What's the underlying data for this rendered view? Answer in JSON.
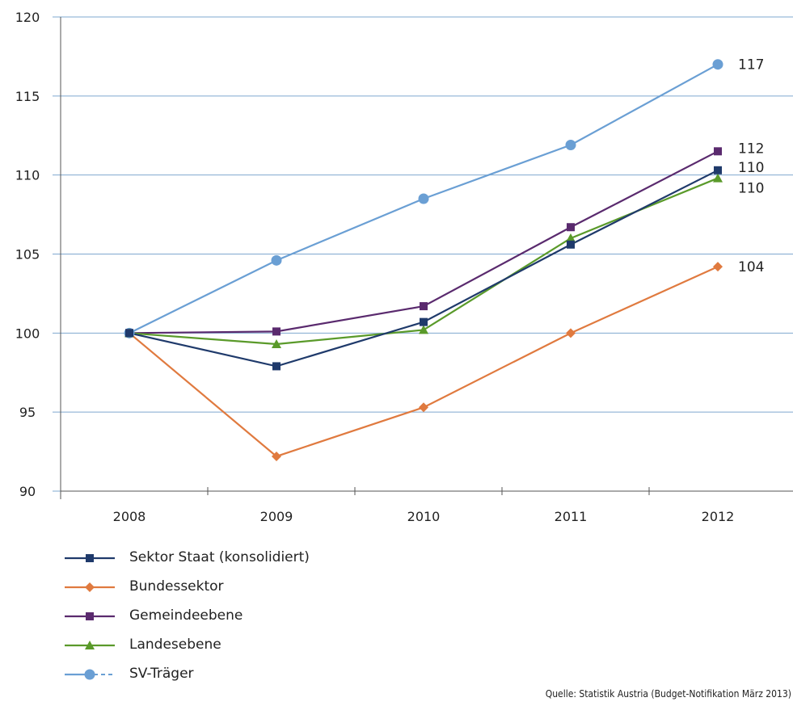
{
  "chart_data": {
    "type": "line",
    "categories": [
      "2008",
      "2009",
      "2010",
      "2011",
      "2012"
    ],
    "ylim": [
      90,
      120
    ],
    "yticks": [
      90,
      95,
      100,
      105,
      110,
      115,
      120
    ],
    "grid": true,
    "legend_position": "bottom-left",
    "series": [
      {
        "name": "Sektor Staat (konsolidiert)",
        "color": "#1f3a6b",
        "marker": "square",
        "values": [
          100,
          97.9,
          100.7,
          105.6,
          110.3
        ],
        "end_label": "110"
      },
      {
        "name": "Bundessektor",
        "color": "#e07a3f",
        "marker": "diamond",
        "values": [
          100,
          92.2,
          95.3,
          100,
          104.2
        ],
        "end_label": "104"
      },
      {
        "name": "Gemeindeebene",
        "color": "#5a2a6e",
        "marker": "square",
        "values": [
          100,
          100.1,
          101.7,
          106.7,
          111.5
        ],
        "end_label": "112"
      },
      {
        "name": "Landesebene",
        "color": "#5a9a2a",
        "marker": "triangle",
        "values": [
          100,
          99.3,
          100.2,
          106,
          109.8
        ],
        "end_label": "110"
      },
      {
        "name": "SV-Träger",
        "color": "#6a9fd4",
        "marker": "circle",
        "values": [
          100,
          104.6,
          108.5,
          111.9,
          117
        ],
        "end_label": "117"
      }
    ]
  },
  "source": "Quelle: Statistik Austria (Budget-Notifikation März 2013)"
}
